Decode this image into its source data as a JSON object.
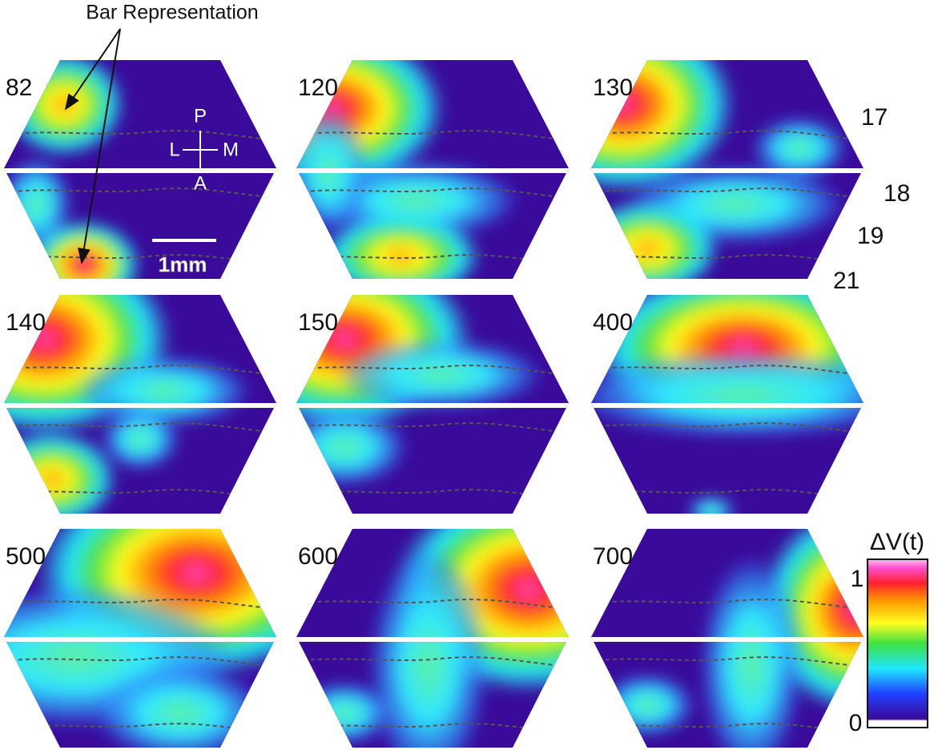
{
  "annotation": "Bar Representation",
  "panels": [
    {
      "label": 82
    },
    {
      "label": 120
    },
    {
      "label": 130
    },
    {
      "label": 140
    },
    {
      "label": 150
    },
    {
      "label": 400
    },
    {
      "label": 500
    },
    {
      "label": 600
    },
    {
      "label": 700
    }
  ],
  "orientation": {
    "posterior": "P",
    "lateral": "L",
    "medial": "M",
    "anterior": "A"
  },
  "scale_bar": "1mm",
  "areas": [
    17,
    18,
    19,
    21
  ],
  "colorbar": {
    "title": "ΔV(t)",
    "max": 1,
    "min": 0
  }
}
